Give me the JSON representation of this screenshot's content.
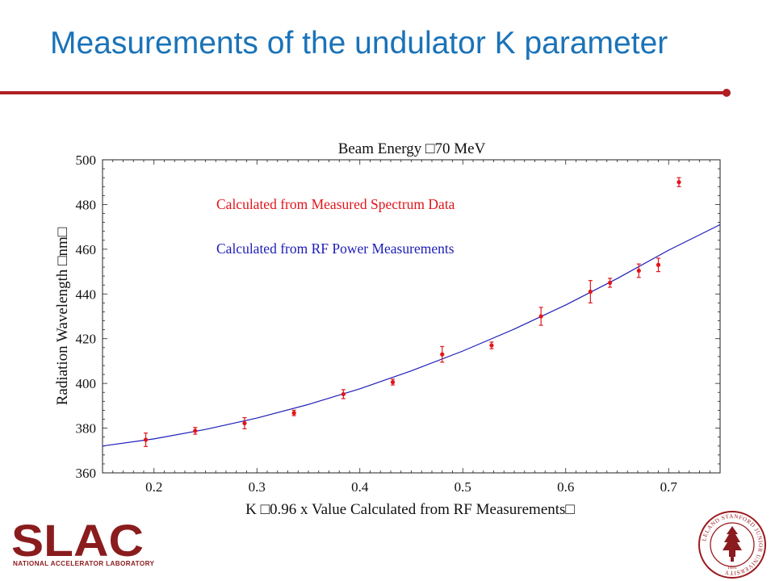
{
  "slide": {
    "title": "Measurements of the undulator K parameter"
  },
  "logo": {
    "wordmark": "SLAC",
    "subtitle": "NATIONAL ACCELERATOR LABORATORY"
  },
  "seal": {
    "name": "stanford-seal-icon",
    "text": "LELAND STANFORD JUNIOR UNIVERSITY",
    "year": "1891"
  },
  "colors": {
    "title": "#1a73b8",
    "rule": "#b01e23",
    "measured": "#e0161b",
    "fit": "#1c1cb8",
    "logo": "#8a1c1e"
  },
  "chart_data": {
    "type": "scatter",
    "title": "Beam Energy □70 MeV",
    "xlabel": "K □0.96 x Value Calculated from RF Measurements□",
    "ylabel": "Radiation Wavelength □nm□",
    "xlim": [
      0.15,
      0.75
    ],
    "ylim": [
      360,
      500
    ],
    "xticks": [
      "0.2",
      "0.3",
      "0.4",
      "0.5",
      "0.6",
      "0.7"
    ],
    "yticks": [
      "360",
      "380",
      "400",
      "420",
      "440",
      "460",
      "480",
      "500"
    ],
    "grid": false,
    "annotations": [
      {
        "text": "Calculated from Measured Spectrum Data",
        "color": "#e0161b"
      },
      {
        "text": "Calculated from RF Power Measurements",
        "color": "#1c1cb8"
      }
    ],
    "series": [
      {
        "kind": "points-with-error-bars",
        "x": [
          0.192,
          0.24,
          0.288,
          0.336,
          0.384,
          0.432,
          0.48,
          0.528,
          0.576,
          0.624,
          0.643,
          0.671,
          0.69,
          0.71
        ],
        "y": [
          374.8,
          378.8,
          382.2,
          386.8,
          395.2,
          400.6,
          413.0,
          417.0,
          430.0,
          441.0,
          445.0,
          450.4,
          453.0,
          490.0
        ],
        "error": [
          3.0,
          1.5,
          2.5,
          1.2,
          2.0,
          1.3,
          3.5,
          1.5,
          4.0,
          5.0,
          2.0,
          3.0,
          3.0,
          2.0
        ]
      },
      {
        "kind": "curve",
        "x": [
          0.15,
          0.2,
          0.25,
          0.3,
          0.35,
          0.4,
          0.45,
          0.5,
          0.55,
          0.6,
          0.65,
          0.7,
          0.75
        ],
        "y": [
          372.0,
          375.2,
          379.4,
          384.5,
          390.6,
          397.6,
          405.6,
          414.5,
          424.3,
          435.1,
          446.9,
          459.6,
          471.0
        ]
      }
    ]
  }
}
